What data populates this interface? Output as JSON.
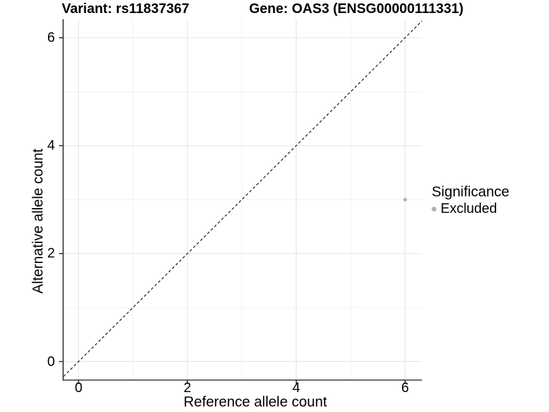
{
  "titles": {
    "variant": "Variant: rs11837367",
    "gene": "Gene: OAS3 (ENSG00000111331)"
  },
  "axes": {
    "x": {
      "label": "Reference allele count",
      "ticks": [
        "0",
        "2",
        "4",
        "6"
      ]
    },
    "y": {
      "label": "Alternative allele count",
      "ticks": [
        "0",
        "2",
        "4",
        "6"
      ]
    }
  },
  "legend": {
    "title": "Significance",
    "items": [
      {
        "label": "Excluded",
        "color": "#b3b3b3",
        "marker": "circle-icon"
      }
    ]
  },
  "chart_data": {
    "type": "scatter",
    "title": "Variant: rs11837367    Gene: OAS3 (ENSG00000111331)",
    "xlabel": "Reference allele count",
    "ylabel": "Alternative allele count",
    "xlim": [
      -0.3,
      6.32
    ],
    "ylim": [
      -0.35,
      6.34
    ],
    "x_ticks": [
      0,
      2,
      4,
      6
    ],
    "y_ticks": [
      0,
      2,
      4,
      6
    ],
    "minor_x": [
      1,
      3,
      5
    ],
    "minor_y": [
      1,
      3,
      5
    ],
    "grid": "on",
    "legend_position": "right",
    "series": [
      {
        "name": "Excluded",
        "color": "#b3b3b3",
        "points": [
          [
            6,
            3
          ]
        ]
      }
    ],
    "reference_line": {
      "kind": "identity y=x",
      "style": "dashed",
      "color": "#000000"
    }
  },
  "colors": {
    "background": "#ffffff",
    "grid_major": "#e3e3e3",
    "grid_minor": "#f1f1f1",
    "axis": "#333333",
    "text": "#000000"
  }
}
